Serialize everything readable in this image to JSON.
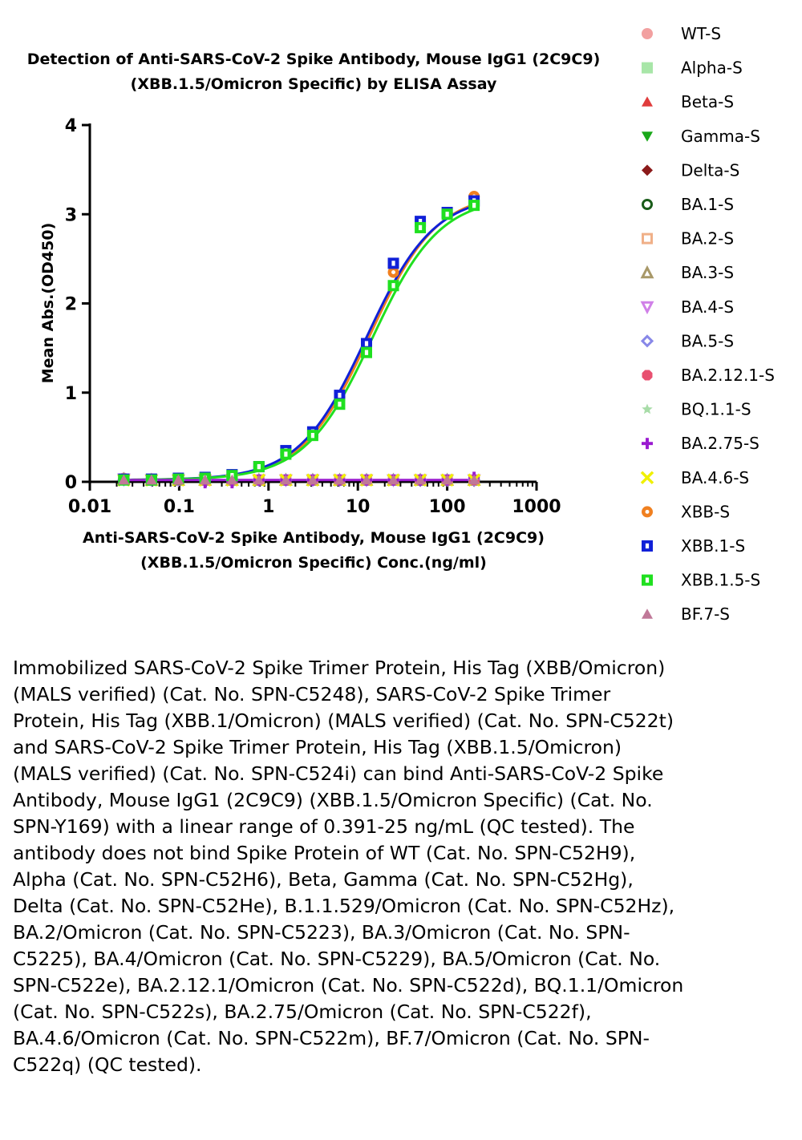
{
  "chart_data": {
    "type": "scatter",
    "title": [
      "Detection of  Anti-SARS-CoV-2 Spike Antibody, Mouse IgG1 (2C9C9)",
      "(XBB.1.5/Omicron Specific) by ELISA Assay"
    ],
    "xlabel": [
      "Anti-SARS-CoV-2 Spike Antibody, Mouse IgG1 (2C9C9)",
      "(XBB.1.5/Omicron Specific) Conc.(ng/ml)"
    ],
    "ylabel": "Mean Abs.(OD450)",
    "x_scale": "log",
    "xlim": [
      0.01,
      1000
    ],
    "ylim": [
      0,
      4
    ],
    "x_ticks": [
      0.01,
      0.1,
      1,
      10,
      100,
      1000
    ],
    "x_tick_labels": [
      "0.01",
      "0.1",
      "1",
      "10",
      "100",
      "1000"
    ],
    "y_ticks": [
      0,
      1,
      2,
      3,
      4
    ],
    "y_tick_labels": [
      "0",
      "1",
      "2",
      "3",
      "4"
    ],
    "legend_position": "right",
    "x": [
      0.024,
      0.049,
      0.098,
      0.195,
      0.391,
      0.781,
      1.563,
      3.125,
      6.25,
      12.5,
      25,
      50,
      100,
      200
    ],
    "series": [
      {
        "name": "WT-S",
        "color": "#f2a0a0",
        "marker": "circle",
        "values": [
          0.04,
          0.03,
          0.03,
          0.02,
          0.02,
          0.02,
          0.02,
          0.02,
          0.02,
          0.02,
          0.02,
          0.02,
          0.02,
          0.02
        ]
      },
      {
        "name": "Alpha-S",
        "color": "#a8e6a8",
        "marker": "square",
        "values": [
          0.03,
          0.03,
          0.02,
          0.02,
          0.02,
          0.02,
          0.02,
          0.02,
          0.02,
          0.02,
          0.02,
          0.02,
          0.02,
          0.02
        ]
      },
      {
        "name": "Beta-S",
        "color": "#e03c3c",
        "marker": "triangle-up",
        "values": [
          0.03,
          0.02,
          0.02,
          0.02,
          0.02,
          0.02,
          0.02,
          0.02,
          0.02,
          0.02,
          0.02,
          0.02,
          0.02,
          0.03
        ]
      },
      {
        "name": "Gamma-S",
        "color": "#1aa81a",
        "marker": "triangle-down",
        "values": [
          0.03,
          0.02,
          0.02,
          0.02,
          0.02,
          0.02,
          0.02,
          0.02,
          0.02,
          0.02,
          0.02,
          0.02,
          0.02,
          0.02
        ]
      },
      {
        "name": "Delta-S",
        "color": "#8b1a1a",
        "marker": "diamond",
        "values": [
          0.02,
          0.02,
          0.02,
          0.02,
          0.02,
          0.02,
          0.02,
          0.02,
          0.02,
          0.02,
          0.02,
          0.02,
          0.02,
          0.02
        ]
      },
      {
        "name": "BA.1-S",
        "color": "#1a5c1a",
        "marker": "circle-open",
        "values": [
          0.03,
          0.02,
          0.02,
          0.02,
          0.02,
          0.02,
          0.02,
          0.02,
          0.02,
          0.02,
          0.02,
          0.02,
          0.02,
          0.02
        ]
      },
      {
        "name": "BA.2-S",
        "color": "#f0b088",
        "marker": "square-open",
        "values": [
          0.03,
          0.02,
          0.02,
          0.02,
          0.02,
          0.02,
          0.02,
          0.02,
          0.02,
          0.02,
          0.02,
          0.02,
          0.02,
          0.02
        ]
      },
      {
        "name": "BA.3-S",
        "color": "#a89868",
        "marker": "triangle-up-open",
        "values": [
          0.03,
          0.02,
          0.02,
          0.02,
          0.02,
          0.02,
          0.02,
          0.02,
          0.02,
          0.02,
          0.02,
          0.02,
          0.02,
          0.02
        ]
      },
      {
        "name": "BA.4-S",
        "color": "#d080e8",
        "marker": "triangle-down-open",
        "values": [
          0.03,
          0.02,
          0.02,
          0.02,
          0.02,
          0.02,
          0.02,
          0.02,
          0.02,
          0.02,
          0.02,
          0.02,
          0.02,
          0.02
        ]
      },
      {
        "name": "BA.5-S",
        "color": "#8888e8",
        "marker": "diamond-open",
        "values": [
          0.02,
          0.02,
          0.02,
          0.02,
          0.02,
          0.02,
          0.02,
          0.02,
          0.02,
          0.02,
          0.02,
          0.02,
          0.02,
          0.02
        ]
      },
      {
        "name": "BA.2.12.1-S",
        "color": "#e85070",
        "marker": "octagon",
        "values": [
          0.03,
          0.02,
          0.02,
          0.02,
          0.02,
          0.02,
          0.02,
          0.02,
          0.02,
          0.02,
          0.02,
          0.02,
          0.02,
          0.02
        ]
      },
      {
        "name": "BQ.1.1-S",
        "color": "#a8dca8",
        "marker": "star",
        "values": [
          0.02,
          0.02,
          0.02,
          0.02,
          0.02,
          0.02,
          0.02,
          0.02,
          0.02,
          0.02,
          0.02,
          0.02,
          0.02,
          0.02
        ]
      },
      {
        "name": "BA.2.75-S",
        "color": "#9a1ad0",
        "marker": "plus",
        "values": [
          0.03,
          0.02,
          0.03,
          -0.01,
          -0.01,
          0.02,
          0.02,
          0.02,
          0.02,
          0.02,
          0.02,
          0.02,
          0.02,
          0.05
        ]
      },
      {
        "name": "BA.4.6-S",
        "color": "#f0f000",
        "marker": "cross",
        "values": [
          0.02,
          0.02,
          0.02,
          0.02,
          0.02,
          0.02,
          0.02,
          0.02,
          0.02,
          0.02,
          0.02,
          0.02,
          0.02,
          0.02
        ]
      },
      {
        "name": "XBB-S",
        "color": "#f08020",
        "marker": "circle-dot",
        "values": [
          0.03,
          0.03,
          0.04,
          0.05,
          0.08,
          0.17,
          0.33,
          0.55,
          0.95,
          1.5,
          2.35,
          2.9,
          3.02,
          3.2
        ]
      },
      {
        "name": "XBB.1-S",
        "color": "#1020d8",
        "marker": "square-dot",
        "values": [
          0.03,
          0.03,
          0.04,
          0.05,
          0.08,
          0.17,
          0.35,
          0.56,
          0.97,
          1.55,
          2.45,
          2.92,
          3.02,
          3.15
        ]
      },
      {
        "name": "XBB.1.5-S",
        "color": "#20e020",
        "marker": "square-dot",
        "values": [
          0.02,
          0.02,
          0.03,
          0.04,
          0.07,
          0.17,
          0.31,
          0.52,
          0.87,
          1.45,
          2.2,
          2.85,
          3.0,
          3.1
        ]
      },
      {
        "name": "BF.7-S",
        "color": "#c07898",
        "marker": "triangle-up",
        "values": [
          0.02,
          0.02,
          0.02,
          0.02,
          0.02,
          0.02,
          0.02,
          0.02,
          0.02,
          0.02,
          0.02,
          0.02,
          0.02,
          0.02
        ]
      }
    ],
    "fit_curves": [
      {
        "series": "XBB-S",
        "color": "#f08020",
        "bottom": 0.02,
        "top": 3.25,
        "ec50": 13.5,
        "hill": 1.15
      },
      {
        "series": "XBB.1-S",
        "color": "#1020d8",
        "bottom": 0.02,
        "top": 3.22,
        "ec50": 12.5,
        "hill": 1.15
      },
      {
        "series": "XBB.1.5-S",
        "color": "#20e020",
        "bottom": 0.02,
        "top": 3.2,
        "ec50": 14.5,
        "hill": 1.15
      },
      {
        "series": "BA.2.75-S",
        "color": "#9a1ad0",
        "flat": 0.02
      }
    ]
  },
  "caption": "Immobilized SARS-CoV-2 Spike Trimer Protein, His Tag (XBB/Omicron) (MALS verified) (Cat. No. SPN-C5248), SARS-CoV-2 Spike Trimer Protein, His Tag (XBB.1/Omicron) (MALS verified) (Cat. No. SPN-C522t) and SARS-CoV-2 Spike Trimer Protein, His Tag (XBB.1.5/Omicron) (MALS verified) (Cat. No. SPN-C524i) can bind Anti-SARS-CoV-2 Spike Antibody, Mouse IgG1 (2C9C9) (XBB.1.5/Omicron Specific) (Cat. No. SPN-Y169) with a linear range of 0.391-25 ng/mL (QC tested). The antibody does not bind Spike Protein of WT (Cat. No. SPN-C52H9), Alpha (Cat. No. SPN-C52H6), Beta, Gamma (Cat. No. SPN-C52Hg), Delta (Cat. No. SPN-C52He), B.1.1.529/Omicron (Cat. No. SPN-C52Hz), BA.2/Omicron (Cat. No. SPN-C5223), BA.3/Omicron (Cat. No. SPN-C5225), BA.4/Omicron (Cat. No. SPN-C5229), BA.5/Omicron (Cat. No. SPN-C522e), BA.2.12.1/Omicron (Cat. No. SPN-C522d), BQ.1.1/Omicron (Cat. No. SPN-C522s), BA.2.75/Omicron (Cat. No. SPN-C522f), BA.4.6/Omicron (Cat. No. SPN-C522m), BF.7/Omicron (Cat. No. SPN-C522q) (QC tested)."
}
